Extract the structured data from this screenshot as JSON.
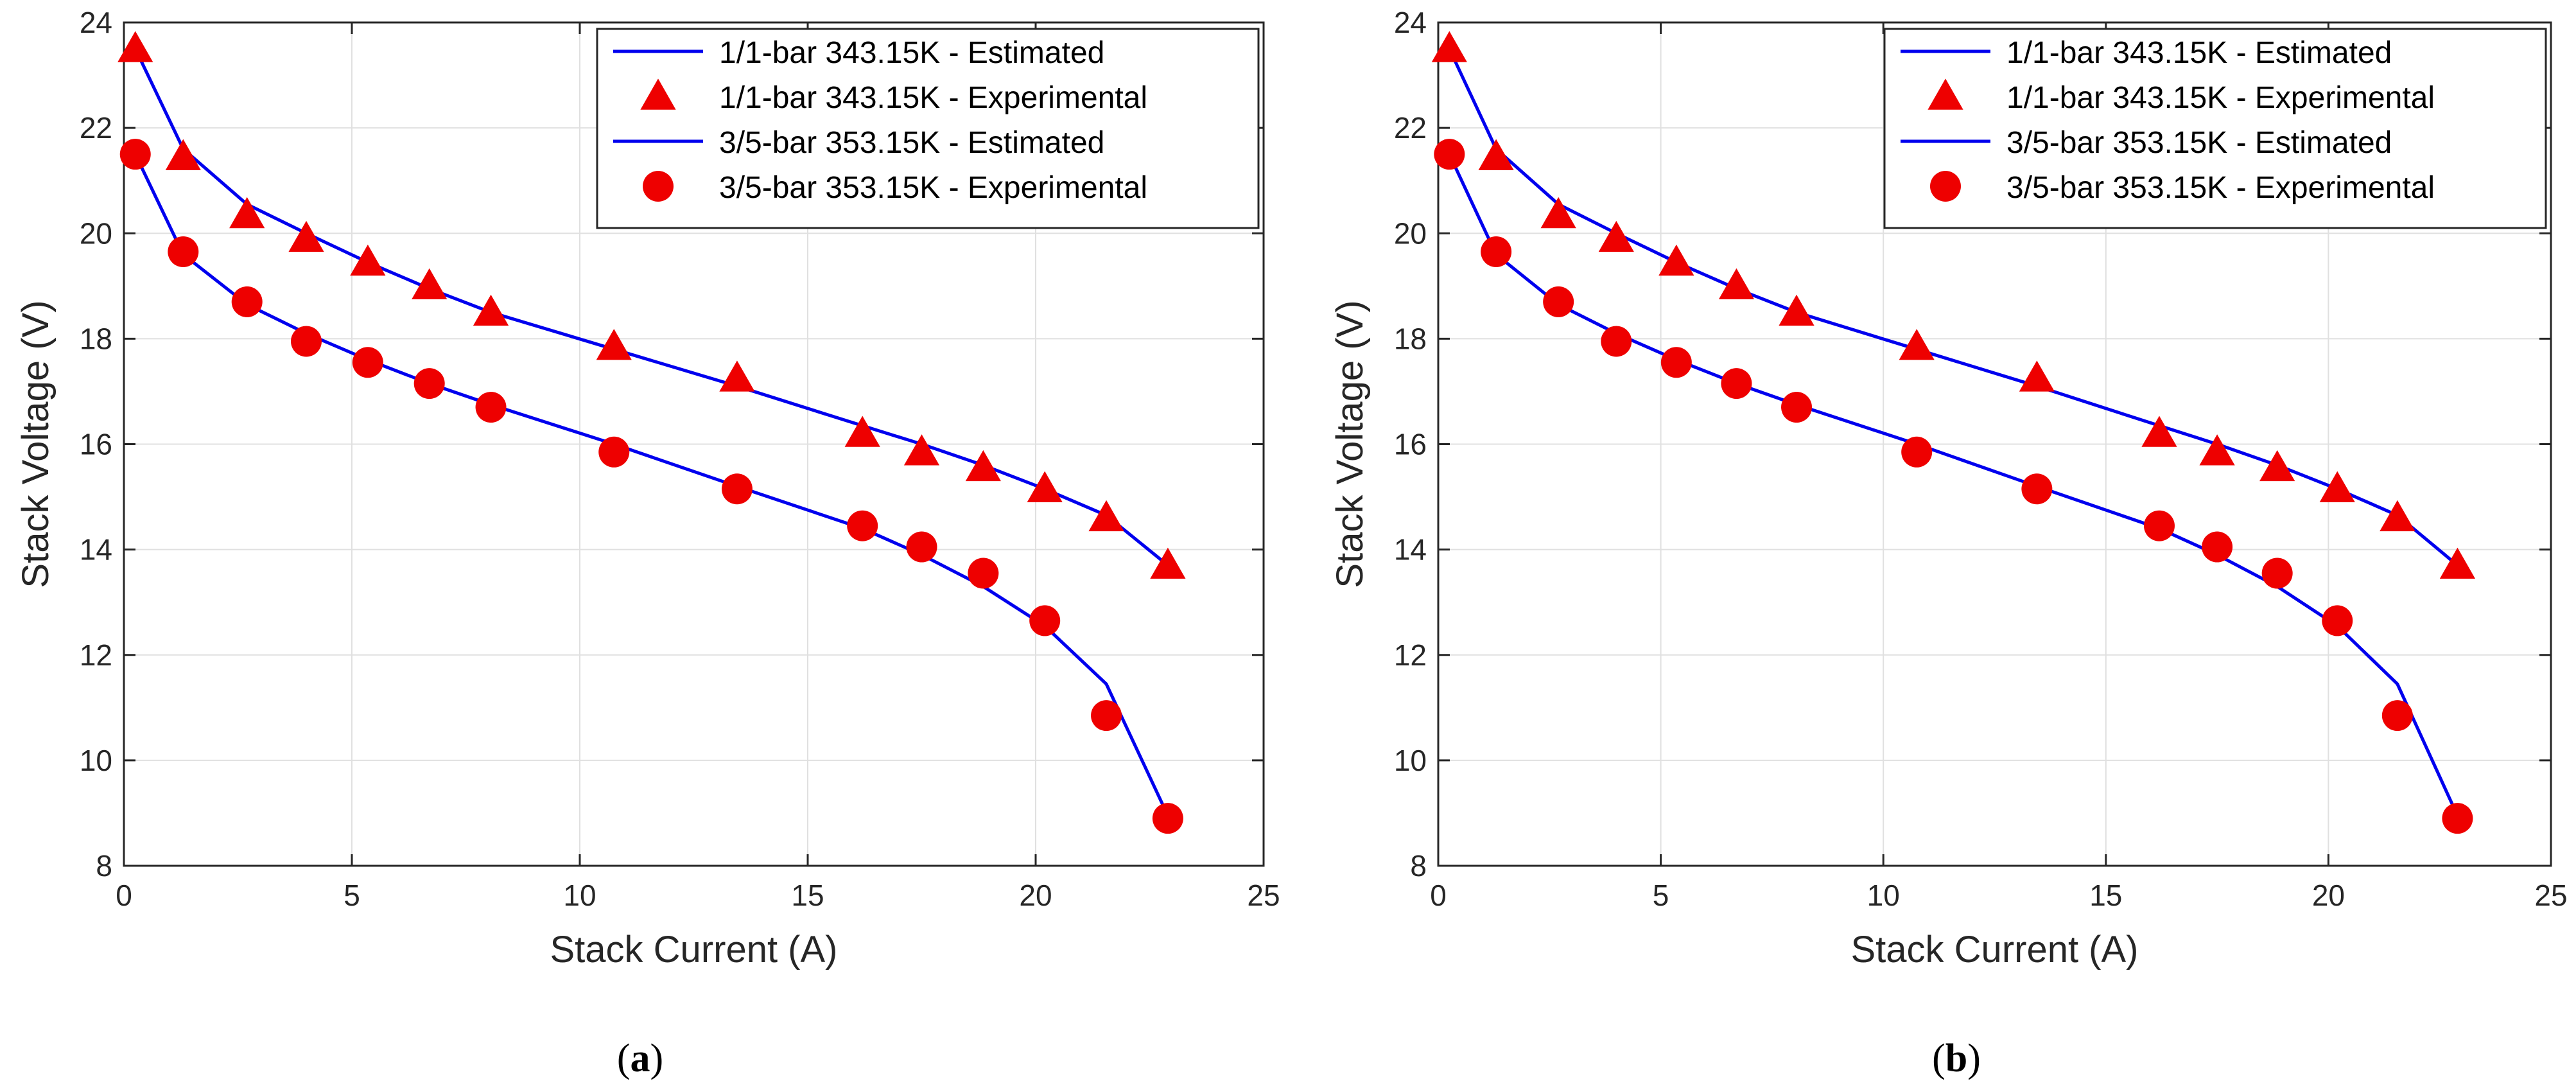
{
  "colors": {
    "estimated_line": "#0000ee",
    "experimental_marker": "#ee0000",
    "grid": "#e0e0e0",
    "axis": "#262626",
    "background": "#ffffff"
  },
  "chart_data": [
    {
      "type": "line",
      "panel": "a",
      "xlabel": "Stack Current (A)",
      "ylabel": "Stack Voltage (V)",
      "xlim": [
        0,
        25
      ],
      "ylim": [
        8,
        24
      ],
      "xticks": [
        0,
        5,
        10,
        15,
        20,
        25
      ],
      "yticks": [
        8,
        10,
        12,
        14,
        16,
        18,
        20,
        22,
        24
      ],
      "grid": true,
      "legend_position": "top-right",
      "series": [
        {
          "name": "1/1-bar 343.15K - Estimated",
          "kind": "line",
          "x": [
            0.25,
            1.3,
            2.7,
            4.0,
            5.35,
            6.7,
            8.05,
            10.75,
            13.45,
            16.2,
            17.5,
            18.85,
            20.2,
            21.55,
            22.9
          ],
          "y": [
            23.5,
            21.6,
            20.55,
            20.0,
            19.45,
            18.95,
            18.5,
            17.8,
            17.1,
            16.35,
            16.0,
            15.6,
            15.15,
            14.65,
            13.7
          ]
        },
        {
          "name": "1/1-bar 343.15K - Experimental",
          "kind": "marker",
          "marker": "triangle",
          "x": [
            0.25,
            1.3,
            2.7,
            4.0,
            5.35,
            6.7,
            8.05,
            10.75,
            13.45,
            16.2,
            17.5,
            18.85,
            20.2,
            21.55,
            22.9
          ],
          "y": [
            23.5,
            21.45,
            20.35,
            19.9,
            19.45,
            19.0,
            18.5,
            17.85,
            17.25,
            16.2,
            15.85,
            15.55,
            15.15,
            14.6,
            13.7
          ]
        },
        {
          "name": "3/5-bar 353.15K - Estimated",
          "kind": "line",
          "x": [
            0.25,
            1.3,
            2.7,
            4.0,
            5.35,
            6.7,
            8.05,
            10.75,
            13.45,
            16.2,
            17.5,
            18.85,
            20.2,
            21.55,
            22.9
          ],
          "y": [
            21.5,
            19.6,
            18.65,
            18.1,
            17.6,
            17.15,
            16.75,
            16.0,
            15.2,
            14.4,
            13.9,
            13.3,
            12.55,
            11.45,
            8.95
          ]
        },
        {
          "name": "3/5-bar 353.15K - Experimental",
          "kind": "marker",
          "marker": "circle",
          "x": [
            0.25,
            1.3,
            2.7,
            4.0,
            5.35,
            6.7,
            8.05,
            10.75,
            13.45,
            16.2,
            17.5,
            18.85,
            20.2,
            21.55,
            22.9
          ],
          "y": [
            21.5,
            19.65,
            18.7,
            17.95,
            17.55,
            17.15,
            16.7,
            15.85,
            15.15,
            14.45,
            14.05,
            13.55,
            12.65,
            10.85,
            8.9
          ]
        }
      ],
      "caption": {
        "open": "(",
        "letter": "a",
        "close": ")"
      }
    },
    {
      "type": "line",
      "panel": "b",
      "xlabel": "Stack Current (A)",
      "ylabel": "Stack Voltage (V)",
      "xlim": [
        0,
        25
      ],
      "ylim": [
        8,
        24
      ],
      "xticks": [
        0,
        5,
        10,
        15,
        20,
        25
      ],
      "yticks": [
        8,
        10,
        12,
        14,
        16,
        18,
        20,
        22,
        24
      ],
      "grid": true,
      "legend_position": "top-right",
      "series": [
        {
          "name": "1/1-bar 343.15K - Estimated",
          "kind": "line",
          "x": [
            0.25,
            1.3,
            2.7,
            4.0,
            5.35,
            6.7,
            8.05,
            10.75,
            13.45,
            16.2,
            17.5,
            18.85,
            20.2,
            21.55,
            22.9
          ],
          "y": [
            23.5,
            21.6,
            20.55,
            20.0,
            19.45,
            18.95,
            18.5,
            17.8,
            17.1,
            16.35,
            16.0,
            15.6,
            15.15,
            14.65,
            13.7
          ]
        },
        {
          "name": "1/1-bar 343.15K - Experimental",
          "kind": "marker",
          "marker": "triangle",
          "x": [
            0.25,
            1.3,
            2.7,
            4.0,
            5.35,
            6.7,
            8.05,
            10.75,
            13.45,
            16.2,
            17.5,
            18.85,
            20.2,
            21.55,
            22.9
          ],
          "y": [
            23.5,
            21.45,
            20.35,
            19.9,
            19.45,
            19.0,
            18.5,
            17.85,
            17.25,
            16.2,
            15.85,
            15.55,
            15.15,
            14.6,
            13.7
          ]
        },
        {
          "name": "3/5-bar 353.15K - Estimated",
          "kind": "line",
          "x": [
            0.25,
            1.3,
            2.7,
            4.0,
            5.35,
            6.7,
            8.05,
            10.75,
            13.45,
            16.2,
            17.5,
            18.85,
            20.2,
            21.55,
            22.9
          ],
          "y": [
            21.5,
            19.6,
            18.65,
            18.1,
            17.6,
            17.15,
            16.75,
            16.0,
            15.2,
            14.4,
            13.9,
            13.3,
            12.55,
            11.45,
            8.95
          ]
        },
        {
          "name": "3/5-bar 353.15K - Experimental",
          "kind": "marker",
          "marker": "circle",
          "x": [
            0.25,
            1.3,
            2.7,
            4.0,
            5.35,
            6.7,
            8.05,
            10.75,
            13.45,
            16.2,
            17.5,
            18.85,
            20.2,
            21.55,
            22.9
          ],
          "y": [
            21.5,
            19.65,
            18.7,
            17.95,
            17.55,
            17.15,
            16.7,
            15.85,
            15.15,
            14.45,
            14.05,
            13.55,
            12.65,
            10.85,
            8.9
          ]
        }
      ],
      "caption": {
        "open": "(",
        "letter": "b",
        "close": ")"
      }
    }
  ]
}
